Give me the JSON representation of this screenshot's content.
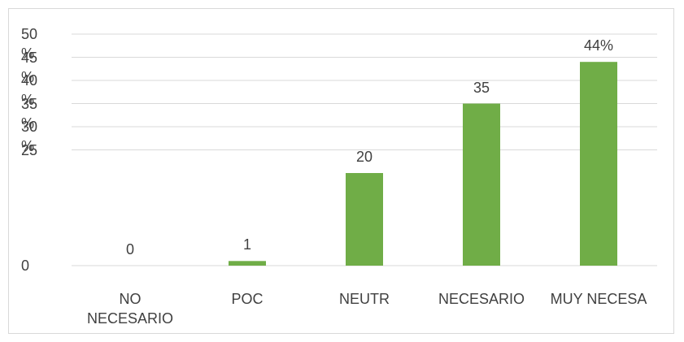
{
  "chart_data": {
    "type": "bar",
    "categories": [
      "NO NECESARIO",
      "POC",
      "NEUTR",
      "NECESARIO",
      "MUY NECESA"
    ],
    "values": [
      0,
      1,
      20,
      35,
      44
    ],
    "value_labels": [
      "0",
      "1",
      "20",
      "35",
      "44%"
    ],
    "color": "#70ad47",
    "ylim": [
      0,
      50
    ],
    "yticks": [
      0,
      25,
      {
        "value": 30,
        "label": "30 %"
      },
      {
        "value": 35,
        "label": "35 %"
      },
      {
        "value": 40,
        "label": "40 %"
      },
      {
        "value": 45,
        "label": "45 %"
      },
      {
        "value": 50,
        "label": "50 %"
      }
    ],
    "grid": true
  }
}
